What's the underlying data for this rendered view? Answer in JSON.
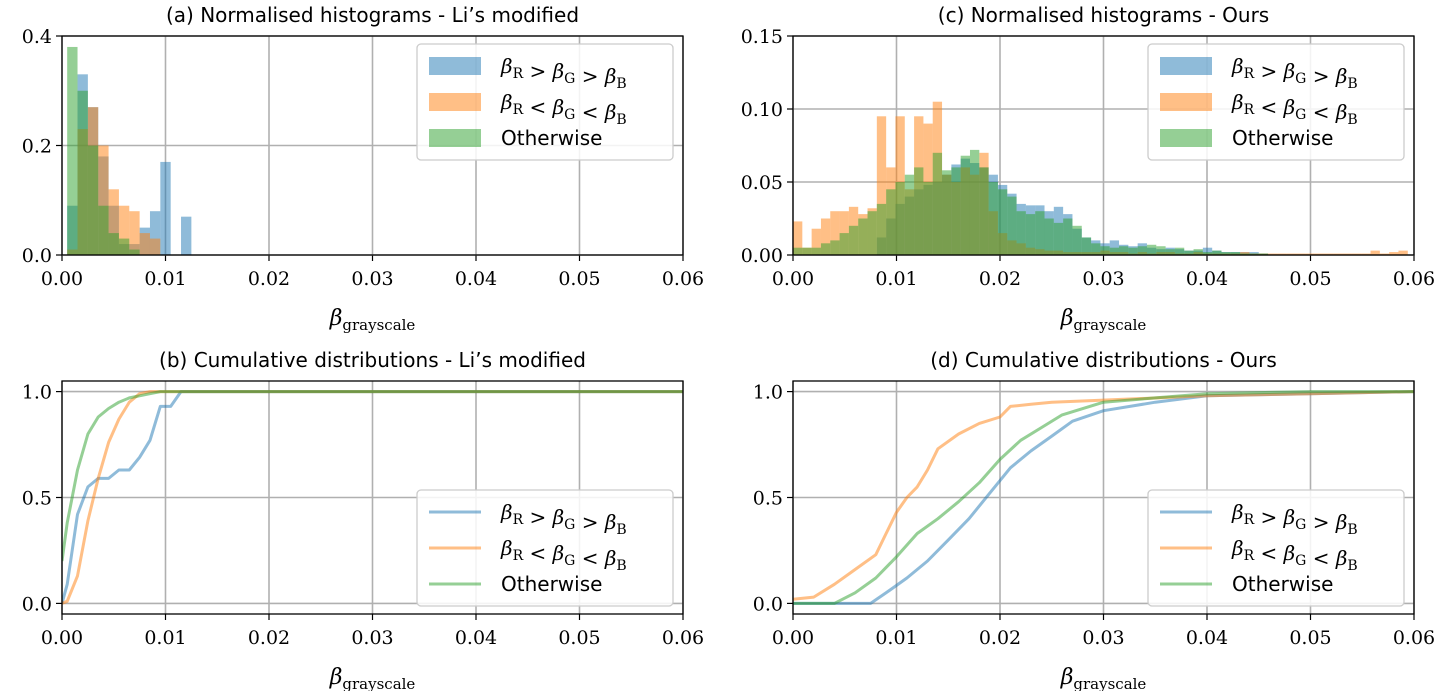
{
  "colors": {
    "blue": "#1f77b4",
    "orange": "#ff7f0e",
    "green": "#2ca02c",
    "grid": "#b0b0b0"
  },
  "legend_labels": [
    "βR > βG > βB",
    "βR < βG < βB",
    "Otherwise"
  ],
  "chart_data": [
    {
      "id": "a",
      "type": "bar",
      "title": "(a) Normalised histograms - Li’s modified",
      "xlabel": "βgrayscale",
      "ylabel": "",
      "xlim": [
        0,
        0.06
      ],
      "ylim": [
        0,
        0.4
      ],
      "xticks": [
        "0.00",
        "0.01",
        "0.02",
        "0.03",
        "0.04",
        "0.05",
        "0.06"
      ],
      "yticks": [
        "0.0",
        "0.2",
        "0.4"
      ],
      "grid": true,
      "legend": "top-right",
      "bin_width": 0.001,
      "bin_start": 0.0005,
      "series": [
        {
          "name": "βR > βG > βB",
          "color": "blue",
          "values": [
            0.09,
            0.33,
            0.27,
            0.18,
            0.09,
            0.02,
            0.02,
            0.05,
            0.08,
            0.17,
            0.0,
            0.07
          ]
        },
        {
          "name": "βR < βG < βB",
          "color": "orange",
          "values": [
            0.01,
            0.23,
            0.27,
            0.2,
            0.12,
            0.09,
            0.08,
            0.04,
            0.03,
            0.0,
            0.0,
            0.0
          ]
        },
        {
          "name": "Otherwise",
          "color": "green",
          "values": [
            0.38,
            0.3,
            0.2,
            0.09,
            0.04,
            0.03,
            0.01,
            0.0,
            0.0,
            0.0,
            0.0,
            0.0
          ]
        }
      ]
    },
    {
      "id": "b",
      "type": "line",
      "title": "(b) Cumulative distributions - Li’s modified",
      "xlabel": "βgrayscale",
      "ylabel": "",
      "xlim": [
        0,
        0.06
      ],
      "ylim": [
        -0.05,
        1.05
      ],
      "xticks": [
        "0.00",
        "0.01",
        "0.02",
        "0.03",
        "0.04",
        "0.05",
        "0.06"
      ],
      "yticks": [
        "0.0",
        "0.5",
        "1.0"
      ],
      "grid": true,
      "legend": "bottom-right",
      "series": [
        {
          "name": "βR > βG > βB",
          "color": "blue",
          "x": [
            0,
            0.0005,
            0.0015,
            0.0025,
            0.0035,
            0.0045,
            0.0055,
            0.0065,
            0.0075,
            0.0085,
            0.0095,
            0.0105,
            0.0115,
            0.0125,
            0.06
          ],
          "y": [
            0,
            0.09,
            0.42,
            0.55,
            0.59,
            0.59,
            0.63,
            0.63,
            0.69,
            0.77,
            0.93,
            0.93,
            1.0,
            1.0,
            1.0
          ]
        },
        {
          "name": "βR < βG < βB",
          "color": "orange",
          "x": [
            0,
            0.0005,
            0.0015,
            0.0025,
            0.0035,
            0.0045,
            0.0055,
            0.0065,
            0.0075,
            0.0085,
            0.0095,
            0.06
          ],
          "y": [
            0,
            0.01,
            0.13,
            0.39,
            0.59,
            0.76,
            0.87,
            0.95,
            0.99,
            1.0,
            1.0,
            1.0
          ]
        },
        {
          "name": "Otherwise",
          "color": "green",
          "x": [
            0,
            0.0005,
            0.0015,
            0.0025,
            0.0035,
            0.0045,
            0.0055,
            0.0065,
            0.0075,
            0.0085,
            0.0095,
            0.06
          ],
          "y": [
            0.2,
            0.38,
            0.63,
            0.8,
            0.88,
            0.92,
            0.95,
            0.97,
            0.98,
            0.99,
            1.0,
            1.0
          ]
        }
      ]
    },
    {
      "id": "c",
      "type": "bar",
      "title": "(c) Normalised histograms - Ours",
      "xlabel": "βgrayscale",
      "ylabel": "",
      "xlim": [
        0,
        0.06
      ],
      "ylim": [
        0,
        0.15
      ],
      "xticks": [
        "0.00",
        "0.01",
        "0.02",
        "0.03",
        "0.04",
        "0.05",
        "0.06"
      ],
      "yticks": [
        "0.00",
        "0.05",
        "0.10",
        "0.15"
      ],
      "grid": true,
      "legend": "top-right",
      "bin_width": 0.0009,
      "bin_start": 0.0,
      "series": [
        {
          "name": "βR > βG > βB",
          "color": "blue",
          "values": [
            0.0,
            0.0,
            0.0,
            0.0,
            0.0,
            0.0,
            0.0,
            0.0,
            0.0,
            0.012,
            0.025,
            0.035,
            0.04,
            0.045,
            0.048,
            0.05,
            0.055,
            0.062,
            0.066,
            0.063,
            0.06,
            0.055,
            0.048,
            0.042,
            0.035,
            0.034,
            0.034,
            0.03,
            0.033,
            0.028,
            0.018,
            0.012,
            0.01,
            0.008,
            0.01,
            0.007,
            0.006,
            0.008,
            0.005,
            0.004,
            0.005,
            0.004,
            0.003,
            0.003,
            0.005,
            0.003,
            0.002,
            0.002,
            0.002,
            0.002,
            0.001,
            0.0,
            0.0,
            0.0,
            0.0,
            0.0,
            0.0,
            0.0,
            0.0,
            0.0,
            0.0,
            0.0,
            0.0,
            0.0,
            0.0,
            0.0
          ]
        },
        {
          "name": "βR < βG < βB",
          "color": "orange",
          "values": [
            0.023,
            0.005,
            0.018,
            0.025,
            0.03,
            0.03,
            0.033,
            0.028,
            0.032,
            0.095,
            0.06,
            0.095,
            0.045,
            0.095,
            0.09,
            0.105,
            0.055,
            0.05,
            0.06,
            0.055,
            0.07,
            0.03,
            0.015,
            0.01,
            0.008,
            0.005,
            0.004,
            0.003,
            0.003,
            0.002,
            0.002,
            0.002,
            0.002,
            0.003,
            0.002,
            0.002,
            0.001,
            0.002,
            0.001,
            0.002,
            0.002,
            0.001,
            0.001,
            0.002,
            0.001,
            0.001,
            0.001,
            0.001,
            0.002,
            0.001,
            0.001,
            0.001,
            0.001,
            0.001,
            0.001,
            0.001,
            0.001,
            0.001,
            0.001,
            0.001,
            0.001,
            0.001,
            0.003,
            0.001,
            0.002,
            0.003
          ]
        },
        {
          "name": "Otherwise",
          "color": "green",
          "values": [
            0.005,
            0.005,
            0.005,
            0.008,
            0.01,
            0.015,
            0.02,
            0.025,
            0.03,
            0.035,
            0.045,
            0.05,
            0.055,
            0.06,
            0.05,
            0.07,
            0.058,
            0.06,
            0.068,
            0.072,
            0.06,
            0.05,
            0.045,
            0.04,
            0.03,
            0.028,
            0.03,
            0.025,
            0.022,
            0.025,
            0.02,
            0.012,
            0.008,
            0.006,
            0.005,
            0.006,
            0.005,
            0.006,
            0.007,
            0.006,
            0.004,
            0.005,
            0.003,
            0.004,
            0.002,
            0.003,
            0.002,
            0.002,
            0.001,
            0.001,
            0.001,
            0.0,
            0.0,
            0.0,
            0.0,
            0.0,
            0.0,
            0.0,
            0.0,
            0.0,
            0.0,
            0.0,
            0.0,
            0.0,
            0.0,
            0.0
          ]
        }
      ]
    },
    {
      "id": "d",
      "type": "line",
      "title": "(d) Cumulative distributions - Ours",
      "xlabel": "βgrayscale",
      "ylabel": "",
      "xlim": [
        0,
        0.06
      ],
      "ylim": [
        -0.05,
        1.05
      ],
      "xticks": [
        "0.00",
        "0.01",
        "0.02",
        "0.03",
        "0.04",
        "0.05",
        "0.06"
      ],
      "yticks": [
        "0.0",
        "0.5",
        "1.0"
      ],
      "grid": true,
      "legend": "bottom-right",
      "series": [
        {
          "name": "βR > βG > βB",
          "color": "blue",
          "x": [
            0,
            0.0075,
            0.009,
            0.011,
            0.013,
            0.015,
            0.017,
            0.019,
            0.021,
            0.023,
            0.025,
            0.027,
            0.03,
            0.035,
            0.04,
            0.05,
            0.06
          ],
          "y": [
            0.0,
            0.0,
            0.05,
            0.12,
            0.2,
            0.3,
            0.4,
            0.52,
            0.64,
            0.72,
            0.79,
            0.86,
            0.91,
            0.95,
            0.98,
            0.99,
            1.0
          ]
        },
        {
          "name": "βR < βG < βB",
          "color": "orange",
          "x": [
            0,
            0.002,
            0.004,
            0.006,
            0.008,
            0.009,
            0.01,
            0.011,
            0.012,
            0.013,
            0.014,
            0.016,
            0.018,
            0.02,
            0.021,
            0.023,
            0.025,
            0.03,
            0.04,
            0.05,
            0.06
          ],
          "y": [
            0.02,
            0.03,
            0.09,
            0.16,
            0.23,
            0.33,
            0.43,
            0.5,
            0.55,
            0.63,
            0.73,
            0.8,
            0.85,
            0.88,
            0.93,
            0.94,
            0.95,
            0.96,
            0.98,
            0.99,
            1.0
          ]
        },
        {
          "name": "Otherwise",
          "color": "green",
          "x": [
            0,
            0.004,
            0.006,
            0.008,
            0.01,
            0.012,
            0.014,
            0.016,
            0.018,
            0.02,
            0.022,
            0.024,
            0.026,
            0.03,
            0.035,
            0.04,
            0.05,
            0.06
          ],
          "y": [
            0.0,
            0.0,
            0.05,
            0.12,
            0.22,
            0.33,
            0.4,
            0.48,
            0.57,
            0.68,
            0.77,
            0.83,
            0.89,
            0.95,
            0.97,
            0.99,
            1.0,
            1.0
          ]
        }
      ]
    }
  ]
}
